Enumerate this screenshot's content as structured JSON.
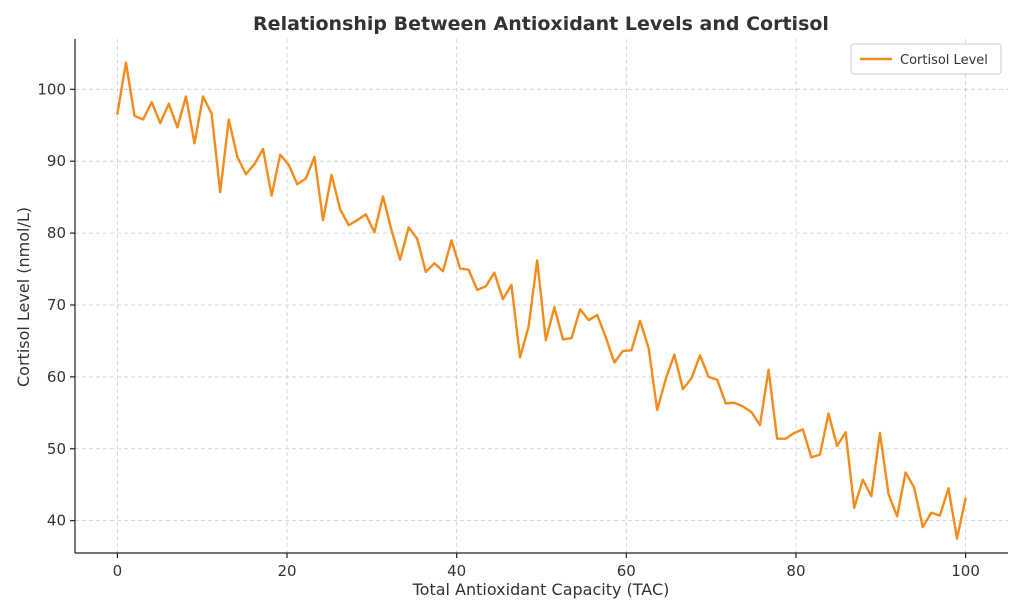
{
  "chart_data": {
    "type": "line",
    "title": "Relationship Between Antioxidant Levels and Cortisol",
    "xlabel": "Total Antioxidant Capacity (TAC)",
    "ylabel": "Cortisol Level (nmol/L)",
    "xlim": [
      -5,
      105
    ],
    "ylim": [
      35.5,
      107
    ],
    "xticks": [
      0,
      20,
      40,
      60,
      80,
      100
    ],
    "yticks": [
      40,
      50,
      60,
      70,
      80,
      90,
      100
    ],
    "grid": true,
    "legend_position": "top-right",
    "series": [
      {
        "name": "Cortisol Level",
        "color": "#f28c1c",
        "x": [
          0,
          1.01,
          2.02,
          3.03,
          4.04,
          5.05,
          6.06,
          7.07,
          8.08,
          9.09,
          10.1,
          11.11,
          12.12,
          13.13,
          14.14,
          15.15,
          16.16,
          17.17,
          18.18,
          19.19,
          20.2,
          21.21,
          22.22,
          23.23,
          24.24,
          25.25,
          26.26,
          27.27,
          28.28,
          29.29,
          30.3,
          31.31,
          32.32,
          33.33,
          34.34,
          35.35,
          36.36,
          37.37,
          38.38,
          39.39,
          40.4,
          41.41,
          42.42,
          43.43,
          44.44,
          45.45,
          46.46,
          47.47,
          48.48,
          49.49,
          50.51,
          51.52,
          52.53,
          53.54,
          54.55,
          55.56,
          56.57,
          57.58,
          58.59,
          59.6,
          60.61,
          61.62,
          62.63,
          63.64,
          64.65,
          65.66,
          66.67,
          67.68,
          68.69,
          69.7,
          70.71,
          71.72,
          72.73,
          73.74,
          74.75,
          75.76,
          76.77,
          77.78,
          78.79,
          79.8,
          80.81,
          81.82,
          82.83,
          83.84,
          84.85,
          85.86,
          86.87,
          87.88,
          88.89,
          89.9,
          90.91,
          91.92,
          92.93,
          93.94,
          94.95,
          95.96,
          96.97,
          97.98,
          98.99,
          100
        ],
        "values": [
          96.6,
          103.7,
          96.3,
          95.8,
          98.2,
          95.3,
          98.0,
          94.7,
          99.0,
          92.5,
          99.0,
          96.6,
          85.7,
          95.8,
          90.6,
          88.2,
          89.6,
          91.7,
          85.2,
          90.9,
          89.5,
          86.8,
          87.6,
          90.6,
          81.8,
          88.1,
          83.3,
          81.1,
          81.8,
          82.6,
          80.1,
          85.1,
          80.4,
          76.3,
          80.8,
          79.2,
          74.6,
          75.8,
          74.7,
          79.0,
          75.1,
          74.9,
          72.1,
          72.6,
          74.5,
          70.8,
          72.8,
          62.7,
          67.0,
          76.2,
          65.1,
          69.7,
          65.2,
          65.4,
          69.4,
          67.9,
          68.6,
          65.5,
          62.0,
          63.6,
          63.7,
          67.8,
          64.0,
          55.4,
          59.7,
          63.1,
          58.3,
          59.8,
          63.0,
          60.0,
          59.6,
          56.3,
          56.4,
          55.9,
          55.1,
          53.3,
          61.0,
          51.4,
          51.4,
          52.2,
          52.7,
          48.8,
          49.2,
          54.9,
          50.4,
          52.3,
          41.8,
          45.7,
          43.4,
          52.2,
          43.7,
          40.6,
          46.7,
          44.6,
          39.1,
          41.1,
          40.7,
          44.5,
          37.5,
          43.1
        ]
      }
    ]
  }
}
